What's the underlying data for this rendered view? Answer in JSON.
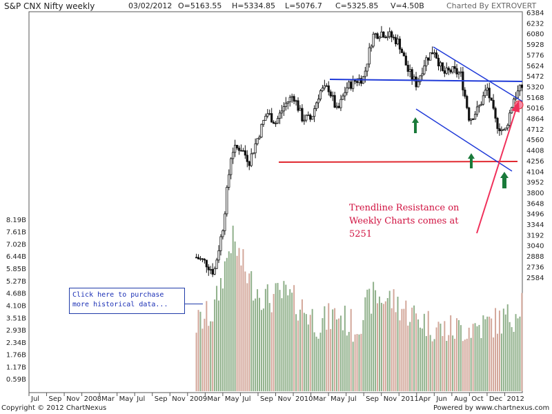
{
  "header": {
    "title": "S&P CNX Nifty weekly",
    "date": "03/02/2012",
    "open": "O=5163.55",
    "high": "H=5334.85",
    "low": "L=5076.7",
    "close": "C=5325.85",
    "volume": "V=4.50B",
    "charted_by": "Charted By EXTROVERT"
  },
  "footer": {
    "copyright": "Copyright © 2012 ChartNexus",
    "powered": "Powered by www.chartnexus.com"
  },
  "tooltip": {
    "line1": "Click here to purchase",
    "line2": "more historical data..."
  },
  "annotation": {
    "text": "Trendline Resistance on Weekly Charts comes at 5251"
  },
  "colors": {
    "candle": "#111111",
    "volume_up": "#8fb08a",
    "volume_down": "#d3a79a",
    "resistance_line": "#1f3ad8",
    "support_line": "#e0282f",
    "arrow": "#f0305a",
    "marker_arrow": "#1a7a3a"
  },
  "chart_data": {
    "type": "candlestick",
    "y_price_ticks": [
      6384,
      6232,
      6080,
      5928,
      5776,
      5624,
      5472,
      5320,
      5168,
      5016,
      4864,
      4712,
      4560,
      4408,
      4256,
      4104,
      3952,
      3800,
      3648,
      3496,
      3344,
      3192,
      3040,
      2888,
      2736,
      2584
    ],
    "y_volume_ticks": [
      "8.19B",
      "7.61B",
      "7.02B",
      "6.44B",
      "5.85B",
      "5.27B",
      "4.68B",
      "4.10B",
      "3.51B",
      "2.93B",
      "2.34B",
      "1.76B",
      "1.17B",
      "0.59B"
    ],
    "x_ticks": [
      "Jul",
      "Sep",
      "Nov",
      "2008",
      "Mar",
      "May",
      "Jul",
      "Sep",
      "Nov",
      "2009",
      "Mar",
      "May",
      "Jul",
      "Sep",
      "Nov",
      "2010",
      "Mar",
      "May",
      "Jul",
      "Sep",
      "Nov",
      "2011",
      "Apr",
      "Jun",
      "Aug",
      "Oct",
      "Dec",
      "2012"
    ],
    "x_range": [
      "2007-06",
      "2012-02"
    ],
    "ylim_price": [
      2500,
      6400
    ],
    "price_path": [
      [
        "2009-01",
        2870
      ],
      [
        "2009-02",
        2800
      ],
      [
        "2009-03",
        2650
      ],
      [
        "2009-04",
        3300
      ],
      [
        "2009-05",
        4400
      ],
      [
        "2009-06",
        4450
      ],
      [
        "2009-07",
        4250
      ],
      [
        "2009-08",
        4600
      ],
      [
        "2009-09",
        4950
      ],
      [
        "2009-10",
        4800
      ],
      [
        "2009-11",
        5050
      ],
      [
        "2009-12",
        5200
      ],
      [
        "2010-01",
        4870
      ],
      [
        "2010-02",
        4850
      ],
      [
        "2010-03",
        5250
      ],
      [
        "2010-04",
        5300
      ],
      [
        "2010-05",
        4950
      ],
      [
        "2010-06",
        5300
      ],
      [
        "2010-07",
        5400
      ],
      [
        "2010-08",
        5450
      ],
      [
        "2010-09",
        6050
      ],
      [
        "2010-10",
        6100
      ],
      [
        "2010-11",
        6050
      ],
      [
        "2010-12",
        5950
      ],
      [
        "2011-01",
        5550
      ],
      [
        "2011-02",
        5350
      ],
      [
        "2011-03",
        5700
      ],
      [
        "2011-04",
        5850
      ],
      [
        "2011-05",
        5500
      ],
      [
        "2011-06",
        5550
      ],
      [
        "2011-07",
        5500
      ],
      [
        "2011-08",
        4850
      ],
      [
        "2011-09",
        5000
      ],
      [
        "2011-10",
        5300
      ],
      [
        "2011-11",
        4800
      ],
      [
        "2011-12",
        4650
      ],
      [
        "2012-01",
        5150
      ],
      [
        "2012-02",
        5325
      ]
    ],
    "volume_path": [
      [
        "2009-01",
        3.2
      ],
      [
        "2009-03",
        3.8
      ],
      [
        "2009-05",
        7.3
      ],
      [
        "2009-07",
        5.3
      ],
      [
        "2009-09",
        4.4
      ],
      [
        "2009-11",
        4.6
      ],
      [
        "2010-01",
        4.0
      ],
      [
        "2010-03",
        3.2
      ],
      [
        "2010-05",
        3.7
      ],
      [
        "2010-07",
        3.0
      ],
      [
        "2010-09",
        4.5
      ],
      [
        "2010-11",
        4.4
      ],
      [
        "2011-01",
        3.8
      ],
      [
        "2011-03",
        3.3
      ],
      [
        "2011-05",
        2.9
      ],
      [
        "2011-07",
        3.0
      ],
      [
        "2011-09",
        3.1
      ],
      [
        "2011-11",
        3.3
      ],
      [
        "2012-01",
        3.6
      ],
      [
        "2012-02",
        4.5
      ]
    ],
    "annotations": [
      {
        "label": "horizontal resistance",
        "y": 5560
      },
      {
        "label": "horizontal support",
        "y": 4560
      },
      {
        "label": "trendline resistance",
        "y": 5251
      }
    ]
  }
}
